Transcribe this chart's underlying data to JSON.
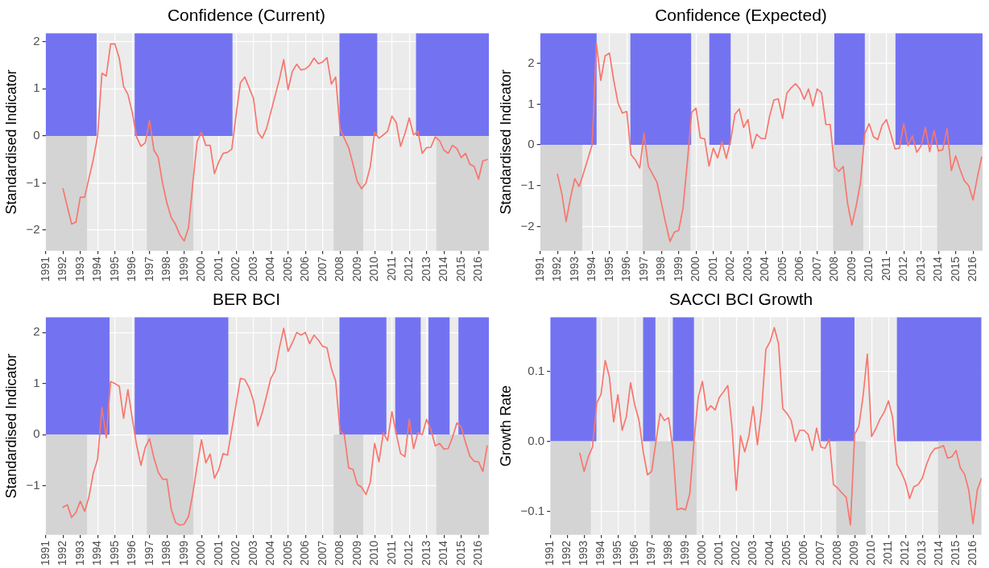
{
  "chart_data": [
    {
      "type": "line",
      "title": "Confidence (Current)",
      "ylabel": "Standardised Indicator",
      "xlim": [
        1991,
        2016.6
      ],
      "ylim": [
        -2.44,
        2.18
      ],
      "xticks": [
        1991,
        1992,
        1993,
        1994,
        1995,
        1996,
        1997,
        1998,
        1999,
        2000,
        2001,
        2002,
        2003,
        2004,
        2005,
        2006,
        2007,
        2008,
        2009,
        2010,
        2011,
        2012,
        2013,
        2014,
        2015,
        2016
      ],
      "yticks": [
        -2,
        -1,
        0,
        1,
        2
      ],
      "grid": true,
      "bands": [
        {
          "axis": "x",
          "from": 1991,
          "to": 1993.94,
          "color": "#7373f2"
        },
        {
          "axis": "x",
          "from": 1996.14,
          "to": 2001.79,
          "color": "#7373f2"
        },
        {
          "axis": "x",
          "from": 2007.97,
          "to": 2010.15,
          "color": "#7373f2"
        },
        {
          "axis": "x",
          "from": 2012.39,
          "to": 2016.6,
          "color": "#7373f2"
        },
        {
          "axis": "x",
          "from": 1991,
          "to": 1993.39,
          "color": "#d4d4d4"
        },
        {
          "axis": "x",
          "from": 1996.84,
          "to": 1999.53,
          "color": "#d4d4d4"
        },
        {
          "axis": "x",
          "from": 2007.63,
          "to": 2009.34,
          "color": "#d4d4d4"
        },
        {
          "axis": "x",
          "from": 2013.56,
          "to": 2016.6,
          "color": "#d4d4d4"
        }
      ],
      "series": [
        {
          "color": "#f8766d",
          "x": [
            1992,
            1992.25,
            1992.5,
            1992.75,
            1993,
            1993.25,
            1993.5,
            1993.75,
            1994,
            1994.25,
            1994.5,
            1994.75,
            1995,
            1995.25,
            1995.5,
            1995.75,
            1996,
            1996.25,
            1996.5,
            1996.75,
            1997,
            1997.25,
            1997.5,
            1997.75,
            1998,
            1998.25,
            1998.5,
            1998.75,
            1999,
            1999.25,
            1999.5,
            1999.75,
            2000,
            2000.25,
            2000.5,
            2000.75,
            2001,
            2001.25,
            2001.5,
            2001.75,
            2002,
            2002.25,
            2002.5,
            2002.75,
            2003,
            2003.25,
            2003.5,
            2003.75,
            2004,
            2004.25,
            2004.5,
            2004.75,
            2005,
            2005.25,
            2005.5,
            2005.75,
            2006,
            2006.25,
            2006.5,
            2006.75,
            2007,
            2007.25,
            2007.5,
            2007.75,
            2008,
            2008.25,
            2008.5,
            2008.75,
            2009,
            2009.25,
            2009.5,
            2009.75,
            2010,
            2010.25,
            2010.5,
            2010.75,
            2011,
            2011.25,
            2011.5,
            2011.75,
            2012,
            2012.25,
            2012.5,
            2012.75,
            2013,
            2013.25,
            2013.5,
            2013.75,
            2014,
            2014.25,
            2014.5,
            2014.75,
            2015,
            2015.25,
            2015.5,
            2015.75,
            2016,
            2016.25,
            2016.5
          ],
          "values": [
            -1.12,
            -1.5,
            -1.87,
            -1.83,
            -1.3,
            -1.3,
            -0.9,
            -0.5,
            0.0,
            1.33,
            1.27,
            1.95,
            1.95,
            1.65,
            1.05,
            0.88,
            0.5,
            -0.02,
            -0.22,
            -0.15,
            0.33,
            -0.3,
            -0.45,
            -1.0,
            -1.42,
            -1.73,
            -1.88,
            -2.1,
            -2.23,
            -1.95,
            -1.0,
            -0.12,
            0.08,
            -0.2,
            -0.2,
            -0.8,
            -0.55,
            -0.37,
            -0.35,
            -0.28,
            0.45,
            1.13,
            1.25,
            1.02,
            0.8,
            0.08,
            -0.05,
            0.15,
            0.5,
            0.85,
            1.2,
            1.62,
            0.98,
            1.37,
            1.52,
            1.4,
            1.42,
            1.5,
            1.65,
            1.53,
            1.57,
            1.66,
            1.1,
            1.25,
            0.15,
            -0.05,
            -0.25,
            -0.6,
            -0.97,
            -1.12,
            -1.0,
            -0.65,
            0.08,
            -0.05,
            0.02,
            0.1,
            0.42,
            0.28,
            -0.22,
            0.05,
            0.38,
            0.02,
            0.1,
            -0.37,
            -0.25,
            -0.24,
            -0.02,
            -0.1,
            -0.3,
            -0.37,
            -0.2,
            -0.27,
            -0.46,
            -0.37,
            -0.6,
            -0.65,
            -0.92,
            -0.53,
            -0.5
          ]
        }
      ]
    },
    {
      "type": "line",
      "title": "Confidence (Expected)",
      "ylabel": "Standardised Indicator",
      "xlim": [
        1991,
        2016.55
      ],
      "ylim": [
        -2.6,
        2.74
      ],
      "xticks": [
        1991,
        1992,
        1993,
        1994,
        1995,
        1996,
        1997,
        1998,
        1999,
        2000,
        2001,
        2002,
        2003,
        2004,
        2005,
        2006,
        2007,
        2008,
        2009,
        2010,
        2011,
        2012,
        2013,
        2014,
        2015,
        2016
      ],
      "yticks": [
        -2,
        -1,
        0,
        1,
        2
      ],
      "grid": true,
      "bands": [
        {
          "axis": "x",
          "from": 1991,
          "to": 1994.26,
          "color": "#7373f2"
        },
        {
          "axis": "x",
          "from": 1996.21,
          "to": 1999.72,
          "color": "#7373f2"
        },
        {
          "axis": "x",
          "from": 2000.77,
          "to": 2002.01,
          "color": "#7373f2"
        },
        {
          "axis": "x",
          "from": 2007.99,
          "to": 2009.75,
          "color": "#7373f2"
        },
        {
          "axis": "x",
          "from": 2011.52,
          "to": 2016.55,
          "color": "#7373f2"
        },
        {
          "axis": "x",
          "from": 1991,
          "to": 1993.43,
          "color": "#d4d4d4"
        },
        {
          "axis": "x",
          "from": 1996.92,
          "to": 1999.68,
          "color": "#d4d4d4"
        },
        {
          "axis": "x",
          "from": 2007.92,
          "to": 2009.66,
          "color": "#d4d4d4"
        },
        {
          "axis": "x",
          "from": 2013.93,
          "to": 2016.55,
          "color": "#d4d4d4"
        }
      ],
      "series": [
        {
          "color": "#f8766d",
          "x": [
            1992,
            1992.25,
            1992.5,
            1992.75,
            1993,
            1993.25,
            1993.5,
            1993.75,
            1994,
            1994.25,
            1994.5,
            1994.75,
            1995,
            1995.25,
            1995.5,
            1995.75,
            1996,
            1996.25,
            1996.5,
            1996.75,
            1997,
            1997.25,
            1997.5,
            1997.75,
            1998,
            1998.25,
            1998.5,
            1998.75,
            1999,
            1999.25,
            1999.5,
            1999.75,
            2000,
            2000.25,
            2000.5,
            2000.75,
            2001,
            2001.25,
            2001.5,
            2001.75,
            2002,
            2002.25,
            2002.5,
            2002.75,
            2003,
            2003.25,
            2003.5,
            2003.75,
            2004,
            2004.25,
            2004.5,
            2004.75,
            2005,
            2005.25,
            2005.5,
            2005.75,
            2006,
            2006.25,
            2006.5,
            2006.75,
            2007,
            2007.25,
            2007.5,
            2007.75,
            2008,
            2008.25,
            2008.5,
            2008.75,
            2009,
            2009.25,
            2009.5,
            2009.75,
            2010,
            2010.25,
            2010.5,
            2010.75,
            2011,
            2011.25,
            2011.5,
            2011.75,
            2012,
            2012.25,
            2012.5,
            2012.75,
            2013,
            2013.25,
            2013.5,
            2013.75,
            2014,
            2014.25,
            2014.5,
            2014.75,
            2015,
            2015.25,
            2015.5,
            2015.75,
            2016,
            2016.25,
            2016.5
          ],
          "values": [
            -0.72,
            -1.2,
            -1.88,
            -1.3,
            -0.83,
            -1.02,
            -0.7,
            -0.35,
            0.0,
            2.48,
            1.58,
            2.18,
            2.25,
            1.58,
            1.02,
            0.78,
            0.82,
            -0.24,
            -0.37,
            -0.57,
            0.28,
            -0.53,
            -0.72,
            -0.92,
            -1.42,
            -1.92,
            -2.37,
            -2.14,
            -2.1,
            -1.55,
            -0.42,
            0.8,
            0.9,
            0.17,
            0.15,
            -0.52,
            -0.08,
            -0.32,
            0.08,
            -0.33,
            0.1,
            0.75,
            0.88,
            0.43,
            0.62,
            -0.08,
            0.26,
            0.16,
            0.15,
            0.7,
            1.1,
            1.13,
            0.65,
            1.27,
            1.4,
            1.5,
            1.37,
            1.12,
            1.37,
            0.95,
            1.37,
            1.28,
            0.5,
            0.5,
            -0.53,
            -0.65,
            -0.53,
            -1.42,
            -1.97,
            -1.5,
            -0.92,
            0.28,
            0.52,
            0.2,
            0.13,
            0.48,
            0.62,
            0.27,
            -0.1,
            -0.08,
            0.52,
            -0.02,
            0.22,
            -0.18,
            -0.03,
            0.43,
            -0.17,
            0.35,
            -0.15,
            -0.12,
            0.4,
            -0.63,
            -0.27,
            -0.6,
            -0.88,
            -1.0,
            -1.35,
            -0.8,
            -0.3
          ]
        }
      ]
    },
    {
      "type": "line",
      "title": "BER BCI",
      "ylabel": "Standardised Indicator",
      "xlim": [
        1991,
        2016.6
      ],
      "ylim": [
        -1.96,
        2.3
      ],
      "xticks": [
        1991,
        1992,
        1993,
        1994,
        1995,
        1996,
        1997,
        1998,
        1999,
        2000,
        2001,
        2002,
        2003,
        2004,
        2005,
        2006,
        2007,
        2008,
        2009,
        2010,
        2011,
        2012,
        2013,
        2014,
        2015,
        2016
      ],
      "yticks": [
        -1,
        0,
        1,
        2
      ],
      "grid": true,
      "bands": [
        {
          "axis": "x",
          "from": 1991,
          "to": 1994.69,
          "color": "#7373f2"
        },
        {
          "axis": "x",
          "from": 1996.14,
          "to": 2001.55,
          "color": "#7373f2"
        },
        {
          "axis": "x",
          "from": 2007.97,
          "to": 2010.68,
          "color": "#7373f2"
        },
        {
          "axis": "x",
          "from": 2011.19,
          "to": 2012.66,
          "color": "#7373f2"
        },
        {
          "axis": "x",
          "from": 2013.11,
          "to": 2014.33,
          "color": "#7373f2"
        },
        {
          "axis": "x",
          "from": 2014.84,
          "to": 2016.6,
          "color": "#7373f2"
        },
        {
          "axis": "x",
          "from": 1991,
          "to": 1993.39,
          "color": "#d4d4d4"
        },
        {
          "axis": "x",
          "from": 1996.84,
          "to": 1999.53,
          "color": "#d4d4d4"
        },
        {
          "axis": "x",
          "from": 2007.63,
          "to": 2009.34,
          "color": "#d4d4d4"
        },
        {
          "axis": "x",
          "from": 2013.56,
          "to": 2016.6,
          "color": "#d4d4d4"
        }
      ],
      "series": [
        {
          "color": "#f8766d",
          "x": [
            1992,
            1992.25,
            1992.5,
            1992.75,
            1993,
            1993.25,
            1993.5,
            1993.75,
            1994,
            1994.25,
            1994.5,
            1994.75,
            1995,
            1995.25,
            1995.5,
            1995.75,
            1996,
            1996.25,
            1996.5,
            1996.75,
            1997,
            1997.25,
            1997.5,
            1997.75,
            1998,
            1998.25,
            1998.5,
            1998.75,
            1999,
            1999.25,
            1999.5,
            1999.75,
            2000,
            2000.25,
            2000.5,
            2000.75,
            2001,
            2001.25,
            2001.5,
            2001.75,
            2002,
            2002.25,
            2002.5,
            2002.75,
            2003,
            2003.25,
            2003.5,
            2003.75,
            2004,
            2004.25,
            2004.5,
            2004.75,
            2005,
            2005.25,
            2005.5,
            2005.75,
            2006,
            2006.25,
            2006.5,
            2006.75,
            2007,
            2007.25,
            2007.5,
            2007.75,
            2008,
            2008.25,
            2008.5,
            2008.75,
            2009,
            2009.25,
            2009.5,
            2009.75,
            2010,
            2010.25,
            2010.5,
            2010.75,
            2011,
            2011.25,
            2011.5,
            2011.75,
            2012,
            2012.25,
            2012.5,
            2012.75,
            2013,
            2013.25,
            2013.5,
            2013.75,
            2014,
            2014.25,
            2014.5,
            2014.75,
            2015,
            2015.25,
            2015.5,
            2015.75,
            2016,
            2016.25,
            2016.5
          ],
          "values": [
            -1.42,
            -1.37,
            -1.62,
            -1.52,
            -1.3,
            -1.5,
            -1.22,
            -0.75,
            -0.48,
            0.53,
            -0.06,
            1.04,
            1.0,
            0.95,
            0.32,
            0.88,
            0.32,
            -0.2,
            -0.6,
            -0.25,
            -0.08,
            -0.45,
            -0.73,
            -0.87,
            -0.87,
            -1.45,
            -1.72,
            -1.77,
            -1.75,
            -1.6,
            -1.15,
            -0.6,
            -0.1,
            -0.55,
            -0.38,
            -0.85,
            -0.68,
            -0.37,
            -0.4,
            0.1,
            0.6,
            1.1,
            1.08,
            0.92,
            0.67,
            0.17,
            0.42,
            0.75,
            1.1,
            1.25,
            1.7,
            2.08,
            1.63,
            1.8,
            2.0,
            1.95,
            2.0,
            1.78,
            1.95,
            1.85,
            1.73,
            1.7,
            1.3,
            1.05,
            0.07,
            0.0,
            -0.65,
            -0.68,
            -0.97,
            -1.03,
            -1.17,
            -0.93,
            -0.17,
            -0.53,
            0.04,
            -0.12,
            0.45,
            0.02,
            -0.37,
            -0.43,
            0.3,
            -0.27,
            0.04,
            0.0,
            0.3,
            0.1,
            -0.22,
            -0.17,
            -0.28,
            -0.27,
            -0.05,
            0.23,
            0.15,
            -0.15,
            -0.42,
            -0.52,
            -0.53,
            -0.72,
            -0.22
          ]
        }
      ]
    },
    {
      "type": "line",
      "title": "SACCI BCI Growth",
      "ylabel": "Growth Rate",
      "xlim": [
        1991,
        2016.5
      ],
      "ylim": [
        -0.134,
        0.178
      ],
      "xticks": [
        1991,
        1992,
        1993,
        1994,
        1995,
        1996,
        1997,
        1998,
        1999,
        2000,
        2001,
        2002,
        2003,
        2004,
        2005,
        2006,
        2007,
        2008,
        2009,
        2010,
        2011,
        2012,
        2013,
        2014,
        2015,
        2016
      ],
      "yticks": [
        {
          "value": -0.1,
          "label": "−0.1"
        },
        {
          "value": 0,
          "label": "0.0"
        },
        {
          "value": 0.1,
          "label": "0.1"
        }
      ],
      "grid": true,
      "bands": [
        {
          "axis": "x",
          "from": 1991,
          "to": 1993.73,
          "color": "#7373f2"
        },
        {
          "axis": "x",
          "from": 1996.49,
          "to": 1997.22,
          "color": "#7373f2"
        },
        {
          "axis": "x",
          "from": 1998.25,
          "to": 1999.5,
          "color": "#7373f2"
        },
        {
          "axis": "x",
          "from": 2007.0,
          "to": 2009.0,
          "color": "#7373f2"
        },
        {
          "axis": "x",
          "from": 2011.5,
          "to": 2016.5,
          "color": "#7373f2"
        },
        {
          "axis": "x",
          "from": 1991,
          "to": 1993.4,
          "color": "#d4d4d4"
        },
        {
          "axis": "x",
          "from": 1996.88,
          "to": 1999.65,
          "color": "#d4d4d4"
        },
        {
          "axis": "x",
          "from": 2007.91,
          "to": 2009.65,
          "color": "#d4d4d4"
        },
        {
          "axis": "x",
          "from": 2013.93,
          "to": 2016.5,
          "color": "#d4d4d4"
        }
      ],
      "series": [
        {
          "color": "#f8766d",
          "x": [
            1992.75,
            1993,
            1993.25,
            1993.5,
            1993.75,
            1994,
            1994.25,
            1994.5,
            1994.75,
            1995,
            1995.25,
            1995.5,
            1995.75,
            1996,
            1996.25,
            1996.5,
            1996.75,
            1997,
            1997.25,
            1997.5,
            1997.75,
            1998,
            1998.25,
            1998.5,
            1998.75,
            1999,
            1999.25,
            1999.5,
            1999.75,
            2000,
            2000.25,
            2000.5,
            2000.75,
            2001,
            2001.25,
            2001.5,
            2001.75,
            2002,
            2002.25,
            2002.5,
            2002.75,
            2003,
            2003.25,
            2003.5,
            2003.75,
            2004,
            2004.25,
            2004.5,
            2004.75,
            2005,
            2005.25,
            2005.5,
            2005.75,
            2006,
            2006.25,
            2006.5,
            2006.75,
            2007,
            2007.25,
            2007.5,
            2007.75,
            2008,
            2008.25,
            2008.5,
            2008.75,
            2009,
            2009.25,
            2009.5,
            2009.75,
            2010,
            2010.25,
            2010.5,
            2010.75,
            2011,
            2011.25,
            2011.5,
            2011.75,
            2012,
            2012.25,
            2012.5,
            2012.75,
            2013,
            2013.25,
            2013.5,
            2013.75,
            2014,
            2014.25,
            2014.5,
            2014.75,
            2015,
            2015.25,
            2015.5,
            2015.75,
            2016,
            2016.25,
            2016.5
          ],
          "values": [
            -0.017,
            -0.043,
            -0.022,
            -0.008,
            0.055,
            0.067,
            0.116,
            0.092,
            0.028,
            0.067,
            0.016,
            0.035,
            0.084,
            0.052,
            0.03,
            -0.015,
            -0.048,
            -0.043,
            0.0,
            0.04,
            0.03,
            0.034,
            -0.01,
            -0.098,
            -0.096,
            -0.098,
            -0.075,
            0.0,
            0.063,
            0.086,
            0.044,
            0.051,
            0.045,
            0.063,
            0.071,
            0.08,
            0.02,
            -0.07,
            0.008,
            -0.015,
            0.008,
            0.05,
            -0.005,
            0.045,
            0.132,
            0.143,
            0.163,
            0.14,
            0.047,
            0.04,
            0.03,
            0.0,
            0.016,
            0.016,
            0.01,
            -0.013,
            0.019,
            -0.008,
            -0.01,
            0.003,
            -0.062,
            -0.067,
            -0.074,
            -0.08,
            -0.12,
            0.01,
            0.022,
            0.065,
            0.125,
            0.007,
            0.018,
            0.032,
            0.042,
            0.058,
            0.034,
            -0.033,
            -0.044,
            -0.058,
            -0.082,
            -0.065,
            -0.062,
            -0.053,
            -0.033,
            -0.018,
            -0.01,
            -0.009,
            -0.006,
            -0.024,
            -0.022,
            -0.013,
            -0.038,
            -0.047,
            -0.07,
            -0.118,
            -0.07,
            -0.053
          ]
        }
      ]
    }
  ]
}
